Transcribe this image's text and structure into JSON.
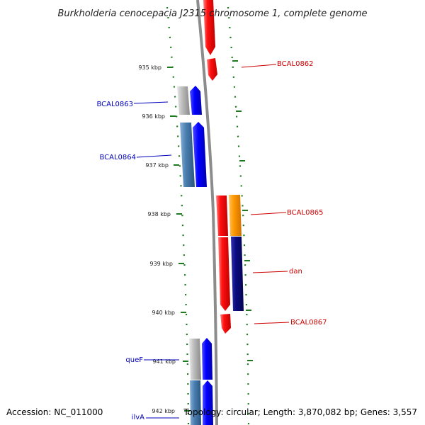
{
  "title": "Burkholderia cenocepacia J2315 chromosome 1, complete genome",
  "footer": {
    "accession": "Accession: NC_011000",
    "stats": "Topology: circular; Length: 3,870,082 bp; Genes: 3,557"
  },
  "colors": {
    "backbone": "#8c8c8c",
    "tick": "#1e7a1e",
    "red": "#ff1a1a",
    "orange": "#ff9900",
    "navy": "#0a0a80",
    "blue": "#0000ff",
    "steel": "#4a7fb0",
    "silver": "#bcbcbc",
    "label_red": "#cc0000",
    "label_blue": "#0000bb"
  },
  "ticks": [
    {
      "label": "935 kbp",
      "kb": 935
    },
    {
      "label": "936 kbp",
      "kb": 936
    },
    {
      "label": "937 kbp",
      "kb": 937
    },
    {
      "label": "938 kbp",
      "kb": 938
    },
    {
      "label": "939 kbp",
      "kb": 939
    },
    {
      "label": "940 kbp",
      "kb": 940
    },
    {
      "label": "941 kbp",
      "kb": 941
    },
    {
      "label": "942 kbp",
      "kb": 942
    }
  ],
  "genes": [
    {
      "label": "BCAL0862",
      "strand": "forward",
      "color": "label_red"
    },
    {
      "label": "BCAL0863",
      "strand": "reverse",
      "color": "label_blue"
    },
    {
      "label": "BCAL0864",
      "strand": "reverse",
      "color": "label_blue"
    },
    {
      "label": "BCAL0865",
      "strand": "forward",
      "color": "label_red"
    },
    {
      "label": "dan",
      "strand": "forward",
      "color": "label_red"
    },
    {
      "label": "BCAL0867",
      "strand": "forward",
      "color": "label_red"
    },
    {
      "label": "queF",
      "strand": "reverse",
      "color": "label_blue"
    },
    {
      "label": "ilvA",
      "strand": "reverse",
      "color": "label_blue"
    }
  ]
}
